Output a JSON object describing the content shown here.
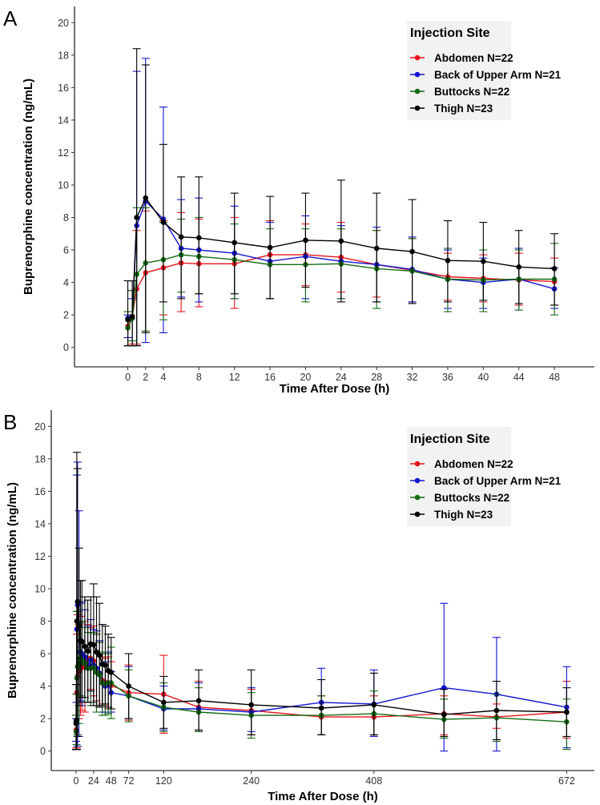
{
  "panels": [
    {
      "label": "A",
      "chart_data": {
        "type": "line",
        "title": "",
        "xlabel": "Time After Dose (h)",
        "ylabel": "Buprenorphine concentration (ng/mL)",
        "xlim": [
          -6,
          52.5
        ],
        "ylim": [
          -1.2,
          21
        ],
        "x_ticks": [
          0,
          2,
          4,
          8,
          12,
          16,
          20,
          24,
          28,
          32,
          36,
          40,
          44,
          48
        ],
        "x_tick_labels": [
          "0",
          "2",
          "4",
          "8",
          "12",
          "16",
          "20",
          "24",
          "28",
          "32",
          "36",
          "40",
          "44",
          "48"
        ],
        "y_ticks": [
          0,
          2,
          4,
          6,
          8,
          10,
          12,
          14,
          16,
          18,
          20
        ],
        "y_tick_labels": [
          "0",
          "2",
          "4",
          "6",
          "8",
          "10",
          "12",
          "14",
          "16",
          "18",
          "20"
        ],
        "x": [
          0,
          0.5,
          1,
          2,
          4,
          6,
          8,
          12,
          16,
          20,
          24,
          28,
          32,
          36,
          40,
          44,
          48
        ],
        "legend_title": "Injection Site",
        "legend_position": "top-right",
        "series": [
          {
            "name": "Abdomen N=22",
            "color": "#e8141b",
            "values": [
              1.3,
              1.9,
              3.6,
              4.6,
              4.9,
              5.2,
              5.15,
              5.15,
              5.7,
              5.7,
              5.55,
              5.1,
              4.75,
              4.35,
              4.25,
              4.15,
              4.05
            ],
            "lower": [
              0.1,
              0.2,
              0.2,
              1.0,
              2.0,
              2.2,
              2.5,
              2.4,
              3.0,
              3.8,
              3.4,
              3.1,
              2.8,
              2.9,
              2.8,
              2.6,
              2.6
            ],
            "upper": [
              2.2,
              3.5,
              7.2,
              8.4,
              7.8,
              8.3,
              7.9,
              8.0,
              7.8,
              7.6,
              7.7,
              7.2,
              6.7,
              5.8,
              5.7,
              5.8,
              5.5
            ]
          },
          {
            "name": "Back of Upper Arm N=21",
            "color": "#1414d2",
            "values": [
              1.8,
              1.8,
              7.5,
              9.0,
              7.9,
              6.1,
              6.0,
              5.8,
              5.3,
              5.6,
              5.3,
              5.1,
              4.8,
              4.2,
              4.0,
              4.2,
              3.6
            ],
            "lower": [
              0.6,
              0.1,
              0.1,
              0.3,
              0.9,
              3.1,
              2.8,
              3.0,
              3.0,
              3.0,
              3.0,
              2.8,
              2.8,
              2.4,
              2.4,
              2.3,
              2.4
            ],
            "upper": [
              2.0,
              3.0,
              17.0,
              17.8,
              14.8,
              9.1,
              9.2,
              8.7,
              7.7,
              8.1,
              7.5,
              7.4,
              6.8,
              6.0,
              5.5,
              6.1,
              4.9
            ]
          },
          {
            "name": "Buttocks N=22",
            "color": "#136b13",
            "values": [
              1.2,
              1.8,
              4.5,
              5.2,
              5.4,
              5.7,
              5.6,
              5.4,
              5.1,
              5.1,
              5.15,
              4.85,
              4.7,
              4.2,
              4.15,
              4.2,
              4.2
            ],
            "lower": [
              0.1,
              0.4,
              0.1,
              1.0,
              1.7,
              3.4,
              3.3,
              3.0,
              3.0,
              2.8,
              3.0,
              2.4,
              2.7,
              2.2,
              2.2,
              2.3,
              2.0
            ],
            "upper": [
              2.2,
              3.5,
              8.6,
              8.6,
              7.7,
              7.9,
              8.0,
              7.6,
              7.3,
              7.3,
              7.3,
              7.2,
              6.7,
              6.1,
              6.0,
              6.0,
              6.4
            ]
          },
          {
            "name": "Thigh N=23",
            "color": "#000000",
            "values": [
              1.7,
              1.9,
              8.0,
              9.2,
              7.7,
              6.8,
              6.75,
              6.45,
              6.15,
              6.6,
              6.55,
              6.1,
              5.9,
              5.35,
              5.3,
              4.95,
              4.85
            ],
            "lower": [
              0.1,
              0.1,
              0.1,
              0.9,
              2.8,
              3.0,
              3.3,
              3.3,
              3.0,
              3.7,
              2.8,
              2.8,
              2.7,
              2.8,
              2.9,
              2.7,
              2.6
            ],
            "upper": [
              4.1,
              4.1,
              18.4,
              17.4,
              12.5,
              10.5,
              10.5,
              9.5,
              9.3,
              9.5,
              10.3,
              9.5,
              9.1,
              7.8,
              7.7,
              7.2,
              7.0
            ]
          }
        ]
      }
    },
    {
      "label": "B",
      "chart_data": {
        "type": "line",
        "title": "",
        "xlabel": "Time After Dose (h)",
        "ylabel": "Buprenorphine concentration (ng/mL)",
        "xlim": [
          -34,
          710
        ],
        "ylim": [
          -1.2,
          21
        ],
        "x_ticks": [
          0,
          24,
          48,
          72,
          120,
          240,
          408,
          672
        ],
        "x_tick_labels": [
          "0",
          "24",
          "48",
          "72",
          "120",
          "240",
          "408",
          "672"
        ],
        "y_ticks": [
          0,
          2,
          4,
          6,
          8,
          10,
          12,
          14,
          16,
          18,
          20
        ],
        "y_tick_labels": [
          "0",
          "2",
          "4",
          "6",
          "8",
          "10",
          "12",
          "14",
          "16",
          "18",
          "20"
        ],
        "x": [
          0,
          0.5,
          1,
          2,
          4,
          6,
          8,
          12,
          16,
          20,
          24,
          28,
          32,
          36,
          40,
          44,
          48,
          72,
          120,
          168,
          240,
          336,
          408,
          504,
          576,
          672
        ],
        "legend_title": "Injection Site",
        "legend_position": "top-right",
        "series": [
          {
            "name": "Abdomen N=22",
            "color": "#e8141b",
            "values": [
              1.3,
              1.9,
              3.6,
              4.6,
              4.9,
              5.2,
              5.15,
              5.15,
              5.7,
              5.7,
              5.55,
              5.1,
              4.75,
              4.35,
              4.25,
              4.15,
              4.05,
              3.6,
              3.5,
              2.7,
              2.5,
              2.1,
              2.1,
              2.3,
              2.1,
              2.4
            ],
            "lower": [
              0.1,
              0.2,
              0.2,
              1.0,
              2.0,
              2.2,
              2.5,
              2.4,
              3.0,
              3.8,
              3.4,
              3.1,
              2.8,
              2.9,
              2.8,
              2.6,
              2.6,
              1.9,
              1.1,
              1.2,
              1.0,
              1.0,
              0.9,
              1.0,
              1.4,
              0.8
            ],
            "upper": [
              2.2,
              3.5,
              7.2,
              8.4,
              7.8,
              8.3,
              7.9,
              8.0,
              7.8,
              7.6,
              7.7,
              7.2,
              6.7,
              5.8,
              5.7,
              5.8,
              5.5,
              5.3,
              5.9,
              4.3,
              3.8,
              3.4,
              3.4,
              3.4,
              2.9,
              4.3
            ]
          },
          {
            "name": "Back of Upper Arm N=21",
            "color": "#1414d2",
            "values": [
              1.8,
              1.8,
              7.5,
              9.0,
              7.9,
              6.1,
              6.0,
              5.8,
              5.3,
              5.6,
              5.3,
              5.1,
              4.8,
              4.2,
              4.0,
              4.2,
              3.6,
              3.4,
              2.6,
              2.6,
              2.4,
              3.0,
              2.9,
              3.9,
              3.5,
              2.7
            ],
            "lower": [
              0.6,
              0.1,
              0.1,
              0.3,
              0.9,
              3.1,
              2.8,
              3.0,
              3.0,
              3.0,
              3.0,
              2.8,
              2.8,
              2.4,
              2.4,
              2.3,
              2.4,
              2.0,
              1.3,
              1.2,
              1.2,
              1.0,
              0.9,
              0.0,
              0.0,
              0.2
            ],
            "upper": [
              2.0,
              3.0,
              17.0,
              17.8,
              14.8,
              9.1,
              9.2,
              8.7,
              7.7,
              8.1,
              7.5,
              7.4,
              6.8,
              6.0,
              5.5,
              6.1,
              4.9,
              5.2,
              4.0,
              4.2,
              3.9,
              5.1,
              5.0,
              9.1,
              7.0,
              5.2
            ]
          },
          {
            "name": "Buttocks N=22",
            "color": "#136b13",
            "values": [
              1.2,
              1.8,
              4.5,
              5.2,
              5.4,
              5.7,
              5.6,
              5.4,
              5.1,
              5.1,
              5.15,
              4.85,
              4.7,
              4.2,
              4.15,
              4.2,
              4.2,
              3.4,
              2.7,
              2.4,
              2.2,
              2.2,
              2.3,
              1.95,
              2.05,
              1.8
            ],
            "lower": [
              0.1,
              0.4,
              0.1,
              1.0,
              1.7,
              3.4,
              3.3,
              3.0,
              3.0,
              2.8,
              3.0,
              2.4,
              2.7,
              2.2,
              2.2,
              2.3,
              2.0,
              1.8,
              1.2,
              1.2,
              0.8,
              1.0,
              1.0,
              0.8,
              0.6,
              0.1
            ],
            "upper": [
              2.2,
              3.5,
              8.6,
              8.6,
              7.7,
              7.9,
              8.0,
              7.6,
              7.3,
              7.3,
              7.3,
              7.2,
              6.7,
              6.1,
              6.0,
              6.0,
              6.4,
              5.0,
              4.2,
              3.9,
              3.6,
              3.4,
              3.7,
              3.2,
              3.5,
              3.2
            ]
          },
          {
            "name": "Thigh N=23",
            "color": "#000000",
            "values": [
              1.7,
              1.9,
              8.0,
              9.2,
              7.7,
              6.8,
              6.75,
              6.45,
              6.15,
              6.6,
              6.55,
              6.1,
              5.9,
              5.35,
              5.3,
              4.95,
              4.85,
              4.0,
              3.0,
              3.1,
              2.85,
              2.65,
              2.85,
              2.25,
              2.5,
              2.4
            ],
            "lower": [
              0.1,
              0.1,
              0.1,
              0.9,
              2.8,
              3.0,
              3.3,
              3.3,
              3.0,
              3.7,
              2.8,
              2.8,
              2.7,
              2.8,
              2.9,
              2.7,
              2.6,
              2.0,
              1.4,
              1.3,
              1.0,
              1.0,
              1.0,
              0.9,
              0.7,
              0.9
            ],
            "upper": [
              4.1,
              4.1,
              18.4,
              17.4,
              12.5,
              10.5,
              10.5,
              9.5,
              9.3,
              9.5,
              10.3,
              9.5,
              9.1,
              7.8,
              7.7,
              7.2,
              7.0,
              6.0,
              4.6,
              5.0,
              5.0,
              4.4,
              4.8,
              3.8,
              4.3,
              3.9
            ]
          }
        ]
      }
    }
  ]
}
